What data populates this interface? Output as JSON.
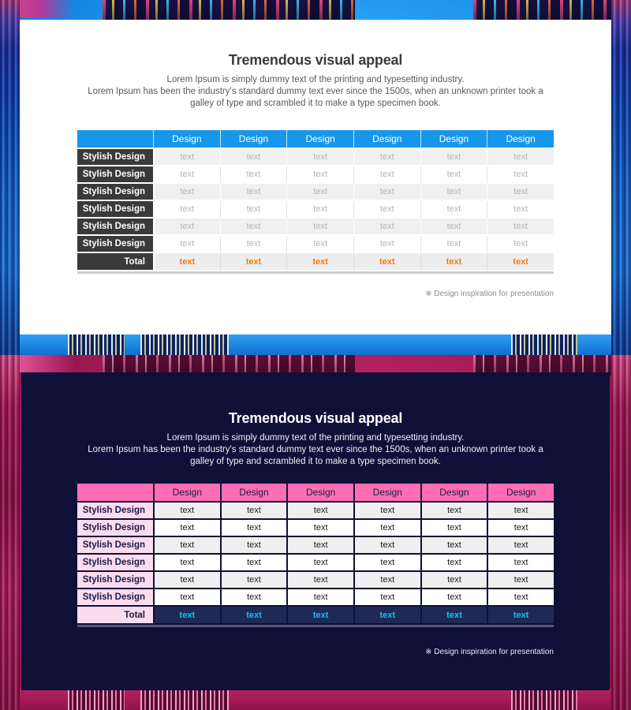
{
  "slide1": {
    "title": "Tremendous visual appeal",
    "subtitle_line1": "Lorem Ipsum is simply dummy text of the printing and typesetting industry.",
    "subtitle_line2": "Lorem Ipsum has been the industry's standard dummy text ever since the 1500s, when an unknown printer took a galley of type and scrambled it to make a type specimen book.",
    "footnote": "※ Design inspiration for presentation",
    "theme": {
      "name": "blue-on-white",
      "header_bg": "#1797ec",
      "header_text": "#ffffff",
      "row_label_bg": "#3a3a3a",
      "row_label_text": "#ffffff",
      "alt_row_bg": "#f0f0f0",
      "data_text": "#b5b5b5",
      "total_value_text": "#f57a10",
      "panel_bg": "#ffffff"
    },
    "table": {
      "column_headers": [
        "Design",
        "Design",
        "Design",
        "Design",
        "Design",
        "Design"
      ],
      "rows": [
        {
          "label": "Stylish Design",
          "cells": [
            "text",
            "text",
            "text",
            "text",
            "text",
            "text"
          ]
        },
        {
          "label": "Stylish Design",
          "cells": [
            "text",
            "text",
            "text",
            "text",
            "text",
            "text"
          ]
        },
        {
          "label": "Stylish Design",
          "cells": [
            "text",
            "text",
            "text",
            "text",
            "text",
            "text"
          ]
        },
        {
          "label": "Stylish Design",
          "cells": [
            "text",
            "text",
            "text",
            "text",
            "text",
            "text"
          ]
        },
        {
          "label": "Stylish Design",
          "cells": [
            "text",
            "text",
            "text",
            "text",
            "text",
            "text"
          ]
        },
        {
          "label": "Stylish Design",
          "cells": [
            "text",
            "text",
            "text",
            "text",
            "text",
            "text"
          ]
        }
      ],
      "total": {
        "label": "Total",
        "cells": [
          "text",
          "text",
          "text",
          "text",
          "text",
          "text"
        ]
      }
    }
  },
  "slide2": {
    "title": "Tremendous visual appeal",
    "subtitle_line1": "Lorem Ipsum is simply dummy text of the printing and typesetting industry.",
    "subtitle_line2": "Lorem Ipsum has been the industry's standard dummy text ever since the 1500s, when an unknown printer took a galley of type and scrambled it to make a type specimen book.",
    "footnote": "※ Design inspiration for presentation",
    "theme": {
      "name": "pink-on-navy",
      "header_bg": "#ff6eb4",
      "header_text": "#181947",
      "row_label_bg": "#fbdcee",
      "row_label_text": "#181947",
      "alt_row_bg": "#efefef",
      "data_text": "#1b1b1b",
      "total_cell_bg": "#1e2a55",
      "total_value_text": "#10c4e8",
      "panel_bg": "#0e1038"
    },
    "table": {
      "column_headers": [
        "Design",
        "Design",
        "Design",
        "Design",
        "Design",
        "Design"
      ],
      "rows": [
        {
          "label": "Stylish Design",
          "cells": [
            "text",
            "text",
            "text",
            "text",
            "text",
            "text"
          ]
        },
        {
          "label": "Stylish Design",
          "cells": [
            "text",
            "text",
            "text",
            "text",
            "text",
            "text"
          ]
        },
        {
          "label": "Stylish Design",
          "cells": [
            "text",
            "text",
            "text",
            "text",
            "text",
            "text"
          ]
        },
        {
          "label": "Stylish Design",
          "cells": [
            "text",
            "text",
            "text",
            "text",
            "text",
            "text"
          ]
        },
        {
          "label": "Stylish Design",
          "cells": [
            "text",
            "text",
            "text",
            "text",
            "text",
            "text"
          ]
        },
        {
          "label": "Stylish Design",
          "cells": [
            "text",
            "text",
            "text",
            "text",
            "text",
            "text"
          ]
        }
      ],
      "total": {
        "label": "Total",
        "cells": [
          "text",
          "text",
          "text",
          "text",
          "text",
          "text"
        ]
      }
    }
  }
}
